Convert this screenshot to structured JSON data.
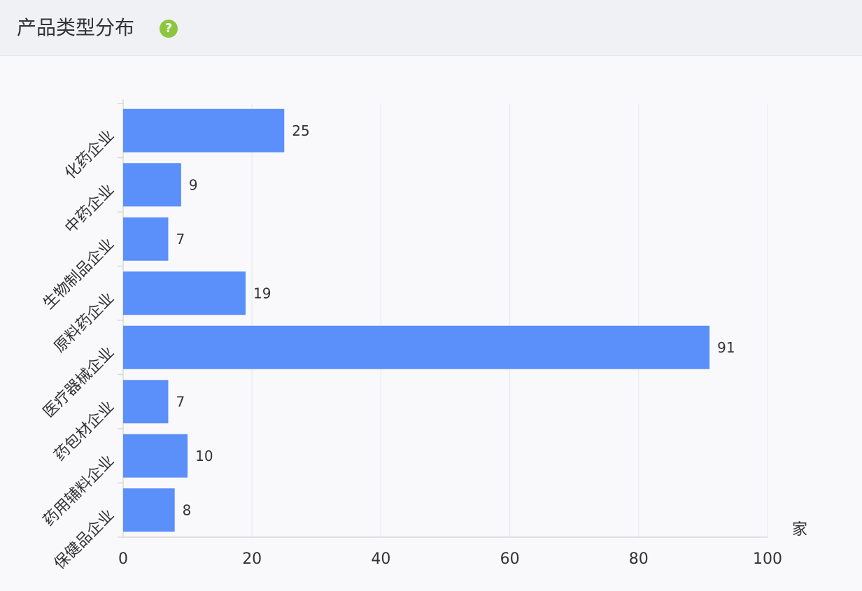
{
  "header": {
    "title": "产品类型分布",
    "help_icon": "question-circle-icon",
    "help_symbol": "?"
  },
  "colors": {
    "bar": "#5b8ff9",
    "grid": "#e8e9ee",
    "axis": "#d9d9d9",
    "help": "#8cc63f"
  },
  "chart_data": {
    "type": "bar",
    "orientation": "horizontal",
    "categories": [
      "化药企业",
      "中药企业",
      "生物制品企业",
      "原料药企业",
      "医疗器械企业",
      "药包材企业",
      "药用辅料企业",
      "保健品企业"
    ],
    "values": [
      25,
      9,
      7,
      19,
      91,
      7,
      10,
      8
    ],
    "xlim": [
      0,
      100
    ],
    "xticks": [
      0,
      20,
      40,
      60,
      80,
      100
    ],
    "xunit": "家",
    "grid": true,
    "legend": "none"
  }
}
